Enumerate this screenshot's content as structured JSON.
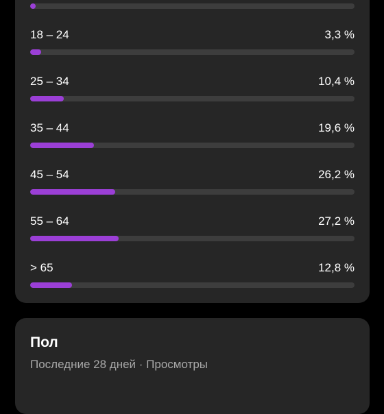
{
  "colors": {
    "background": "#000000",
    "card": "#262626",
    "track": "#3d3d3d",
    "accent": "#9b3fd6",
    "text_primary": "#ffffff",
    "text_secondary": "#a8a8a8"
  },
  "age_card": {
    "top_bar_fraction": 0.006,
    "rows": [
      {
        "label": "18 – 24",
        "value": "3,3 %",
        "fraction": 0.033
      },
      {
        "label": "25 – 34",
        "value": "10,4 %",
        "fraction": 0.104
      },
      {
        "label": "35 – 44",
        "value": "19,6 %",
        "fraction": 0.196
      },
      {
        "label": "45 – 54",
        "value": "26,2 %",
        "fraction": 0.262
      },
      {
        "label": "55 – 64",
        "value": "27,2 %",
        "fraction": 0.272
      },
      {
        "label": "> 65",
        "value": "12,8 %",
        "fraction": 0.128
      }
    ]
  },
  "gender_card": {
    "title": "Пол",
    "subtitle": "Последние 28 дней · Просмотры"
  }
}
